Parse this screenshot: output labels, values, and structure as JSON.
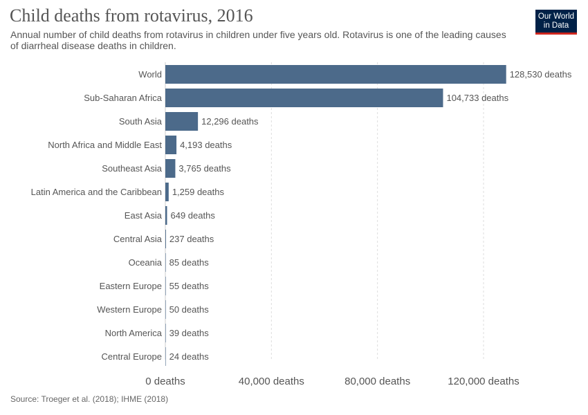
{
  "header": {
    "title": "Child deaths from rotavirus, 2016",
    "subtitle": "Annual number of child deaths from rotavirus in children under five years old. Rotavirus is one of the leading causes of diarrheal disease deaths in children.",
    "logo_line1": "Our World",
    "logo_line2": "in Data"
  },
  "footer": {
    "source": "Source: Troeger et al. (2018); IHME (2018)"
  },
  "colors": {
    "bar": "#4c6a8a",
    "logo_bg": "#002147",
    "logo_accent": "#ce261e"
  },
  "chart_data": {
    "type": "bar",
    "orientation": "horizontal",
    "categories": [
      "World",
      "Sub-Saharan Africa",
      "South Asia",
      "North Africa and Middle East",
      "Southeast Asia",
      "Latin America and the Caribbean",
      "East Asia",
      "Central Asia",
      "Oceania",
      "Eastern Europe",
      "Western Europe",
      "North America",
      "Central Europe"
    ],
    "values": [
      128530,
      104733,
      12296,
      4193,
      3765,
      1259,
      649,
      237,
      85,
      55,
      50,
      39,
      24
    ],
    "value_labels": [
      "128,530 deaths",
      "104,733 deaths",
      "12,296 deaths",
      "4,193 deaths",
      "3,765 deaths",
      "1,259 deaths",
      "649 deaths",
      "237 deaths",
      "85 deaths",
      "55 deaths",
      "50 deaths",
      "39 deaths",
      "24 deaths"
    ],
    "x_ticks": [
      0,
      40000,
      80000,
      120000
    ],
    "x_tick_labels": [
      "0 deaths",
      "40,000 deaths",
      "80,000 deaths",
      "120,000 deaths"
    ],
    "xlim": [
      0,
      130000
    ],
    "grid": true,
    "legend": "none"
  }
}
